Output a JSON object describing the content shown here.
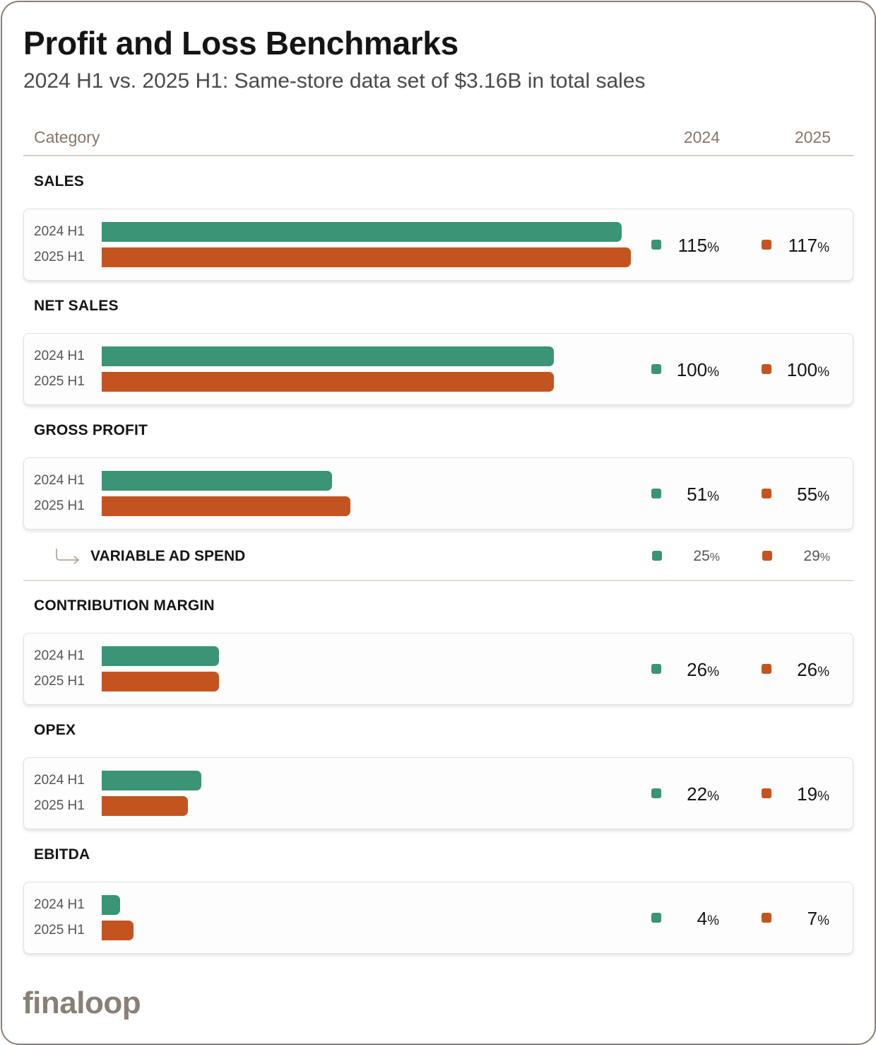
{
  "header": {
    "title": "Profit and Loss Benchmarks",
    "subtitle": "2024 H1 vs. 2025 H1: Same-store data set of $3.16B in total sales"
  },
  "table_header": {
    "category": "Category",
    "col_2024": "2024",
    "col_2025": "2025"
  },
  "chart_data": {
    "type": "bar",
    "orientation": "horizontal",
    "title": "Profit and Loss Benchmarks",
    "subtitle": "2024 H1 vs. 2025 H1: Same-store data set of $3.16B in total sales",
    "series_labels": [
      "2024 H1",
      "2025 H1"
    ],
    "unit": "%",
    "categories": [
      {
        "name": "SALES",
        "v2024": 115,
        "v2025": 117
      },
      {
        "name": "NET SALES",
        "v2024": 100,
        "v2025": 100
      },
      {
        "name": "GROSS PROFIT",
        "v2024": 51,
        "v2025": 55
      },
      {
        "name": "CONTRIBUTION MARGIN",
        "v2024": 26,
        "v2025": 26
      },
      {
        "name": "OPEX",
        "v2024": 22,
        "v2025": 19
      },
      {
        "name": "EBITDA",
        "v2024": 4,
        "v2025": 7
      }
    ],
    "sub_item": {
      "name": "VARIABLE AD SPEND",
      "v2024": 25,
      "v2025": 29
    },
    "colors": {
      "2024": "#3a9475",
      "2025": "#c4541f"
    }
  },
  "footer": {
    "logo_text": "finaloop"
  }
}
